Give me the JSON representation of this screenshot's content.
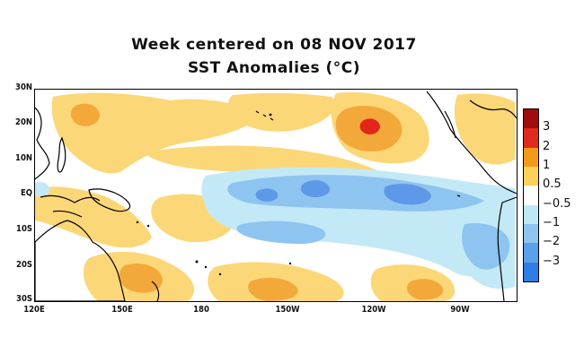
{
  "title": {
    "line1": "Week centered on 08 NOV 2017",
    "line2": "SST Anomalies (°C)"
  },
  "axes": {
    "lat_labels": [
      "30N",
      "20N",
      "10N",
      "EQ",
      "10S",
      "20S",
      "30S"
    ],
    "lon_labels": [
      "120E",
      "150E",
      "180",
      "150W",
      "120W",
      "90W"
    ]
  },
  "legend": {
    "labels": [
      "3",
      "2",
      "1",
      "0.5",
      "−0.5",
      "−1",
      "−2",
      "−3"
    ],
    "colors": [
      "#a10c0c",
      "#e02b1c",
      "#f39a1c",
      "#fbd15a",
      "#ffffff",
      "#bfe8f5",
      "#8dc4f0",
      "#5aa0ea",
      "#2f7ee6"
    ]
  },
  "colors": {
    "land_outline": "#000000",
    "warm_light": "#fbd778",
    "warm_medium": "#f3a93a",
    "warm_strong": "#e2261a",
    "cool_light": "#c3e9f6",
    "cool_medium": "#8ec4f0",
    "cool_strong": "#5e98e8"
  }
}
